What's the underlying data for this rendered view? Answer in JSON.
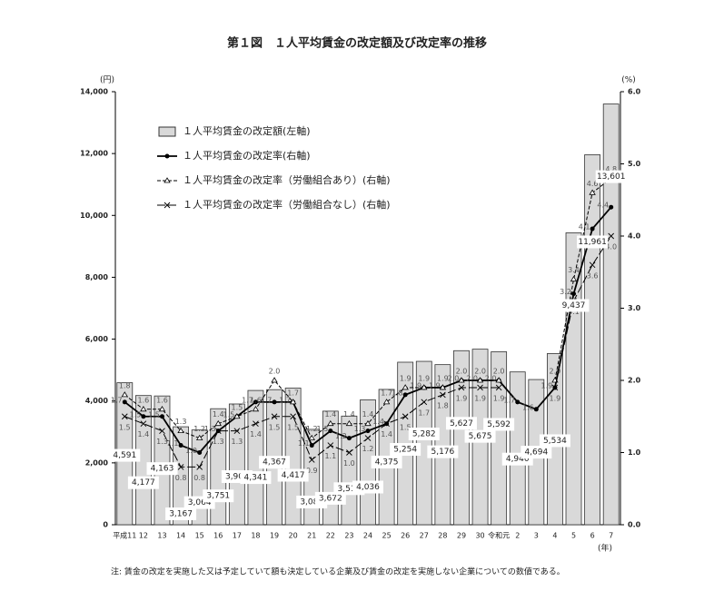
{
  "chart_data": {
    "type": "bar",
    "title": "第１図　１人平均賃金の改定額及び改定率の推移",
    "y_unit": "(円)",
    "y2_unit": "(%)",
    "x_unit": "(年)",
    "note": "注: 賃金の改定を実施した又は予定していて額も決定している企業及び賃金の改定を実施しない企業についての数値である。",
    "categories": [
      "平成11",
      "12",
      "13",
      "14",
      "15",
      "16",
      "17",
      "18",
      "19",
      "20",
      "21",
      "22",
      "23",
      "24",
      "25",
      "26",
      "27",
      "28",
      "29",
      "30",
      "令和元",
      "2",
      "3",
      "4",
      "5",
      "6",
      "7"
    ],
    "ylim": [
      0,
      14000
    ],
    "yticks": [
      0,
      {
        "value": 2000,
        "label": "2,000"
      },
      {
        "value": 4000,
        "label": "4,000"
      },
      {
        "value": 6000,
        "label": "6,000"
      },
      {
        "value": 8000,
        "label": "8,000"
      },
      {
        "value": 10000,
        "label": "10,000"
      },
      {
        "value": 12000,
        "label": "12,000"
      },
      {
        "value": 14000,
        "label": "14,000"
      }
    ],
    "y2lim": [
      0,
      6
    ],
    "y2ticks": [
      {
        "value": 0,
        "label": "0.0"
      },
      {
        "value": 1,
        "label": "1.0"
      },
      {
        "value": 2,
        "label": "2.0"
      },
      {
        "value": 3,
        "label": "3.0"
      },
      {
        "value": 4,
        "label": "4.0"
      },
      {
        "value": 5,
        "label": "5.0"
      },
      {
        "value": 6,
        "label": "6.0"
      }
    ],
    "series": [
      {
        "name": "１人平均賃金の改定額(左軸)",
        "type": "bar",
        "color": "#d9d9d9",
        "values": [
          4591,
          4177,
          4163,
          3167,
          3064,
          3751,
          3904,
          4341,
          4367,
          4417,
          3083,
          3672,
          3513,
          4036,
          4375,
          5254,
          5282,
          5176,
          5627,
          5675,
          5592,
          4940,
          4694,
          5534,
          9437,
          11961,
          13601
        ],
        "value_labels": [
          "4,591",
          "4,177",
          "4,163",
          "3,167",
          "3,064",
          "3,751",
          "3,904",
          "4,341",
          "4,367",
          "4,417",
          "3,083",
          "3,672",
          "3,513",
          "4,036",
          "4,375",
          "5,254",
          "5,282",
          "5,176",
          "5,627",
          "5,675",
          "5,592",
          "4,940",
          "4,694",
          "5,534",
          "9,437",
          "11,961",
          "13,601"
        ]
      },
      {
        "name": "１人平均賃金の改定率(右軸)",
        "type": "line",
        "axis": "y2",
        "color": "#000000",
        "style": "solid",
        "values": [
          1.7,
          1.5,
          1.5,
          1.1,
          1.0,
          1.3,
          1.5,
          1.7,
          1.7,
          1.7,
          1.1,
          1.3,
          1.2,
          1.3,
          1.4,
          1.8,
          1.9,
          1.9,
          2.0,
          2.0,
          2.0,
          1.7,
          1.6,
          1.9,
          3.2,
          4.1,
          4.4
        ],
        "value_labels": [
          "1.7",
          "1.5",
          "1.5",
          "1.1",
          "1.0",
          "1.3",
          "1.5",
          "1.7",
          "1.7",
          "1.7",
          "1.1",
          "1.3",
          "1.2",
          "1.3",
          "1.4",
          "1.8",
          "1.9",
          "1.9",
          "2.0",
          "2.0",
          "2.0",
          "1.7",
          "1.6",
          "1.9",
          "3.2",
          "4.1",
          "4.4"
        ]
      },
      {
        "name": "１人平均賃金の改定率（労働組合あり）(右軸)",
        "type": "line",
        "axis": "y2",
        "color": "#000000",
        "style": "dashed",
        "values": [
          1.8,
          1.6,
          1.6,
          1.3,
          1.2,
          1.4,
          1.5,
          1.6,
          2.0,
          1.7,
          1.2,
          1.4,
          1.4,
          1.4,
          1.7,
          1.9,
          1.9,
          1.9,
          2.0,
          2.0,
          2.0,
          null,
          null,
          2.0,
          3.4,
          4.6,
          4.8
        ],
        "value_labels": [
          "1.8",
          "1.6",
          "1.6",
          "1.3",
          "1.2",
          "1.4",
          "1.5",
          "1.6",
          "2.0",
          "1.7",
          "1.2",
          "1.4",
          "1.4",
          "1.4",
          "1.7",
          "1.9",
          "1.9",
          "1.9",
          "2.0",
          "2.0",
          "2.0",
          null,
          null,
          "2.0",
          "3.4",
          "4.6",
          "4.8"
        ]
      },
      {
        "name": "１人平均賃金の改定率（労働組合なし）(右軸)",
        "type": "line",
        "axis": "y2",
        "color": "#000000",
        "style": "longdash",
        "values": [
          1.5,
          1.4,
          1.3,
          0.8,
          0.8,
          1.3,
          1.3,
          1.4,
          1.5,
          1.5,
          0.9,
          1.1,
          1.0,
          1.2,
          1.4,
          1.5,
          1.7,
          1.8,
          1.9,
          1.9,
          1.9,
          null,
          null,
          1.9,
          3.1,
          3.6,
          4.0
        ],
        "value_labels": [
          "1.5",
          "1.4",
          "1.3",
          "0.8",
          "0.8",
          "1.3",
          "1.3",
          "1.4",
          "1.5",
          "1.5",
          "0.9",
          "1.1",
          "1.0",
          "1.2",
          "1.4",
          "1.5",
          "1.7",
          "1.8",
          "1.9",
          "1.9",
          "1.9",
          null,
          null,
          "1.9",
          "3.1",
          "3.6",
          "4.0"
        ]
      }
    ]
  }
}
